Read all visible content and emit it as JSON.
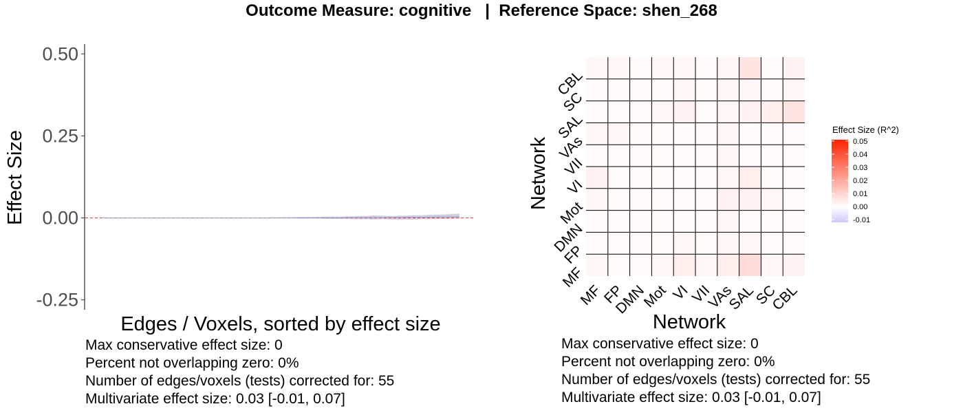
{
  "title": "Outcome Measure: cognitive   |  Reference Space: shen_268",
  "chart_data": [
    {
      "type": "line",
      "xlabel": "Edges / Voxels, sorted by effect size",
      "ylabel": "Effect Size",
      "ylim": [
        -0.28,
        0.53
      ],
      "yticks": [
        "0.50",
        "0.25",
        "0.00",
        "-0.25"
      ],
      "ytick_values": [
        0.5,
        0.25,
        0.0,
        -0.25
      ],
      "reference_line": 0,
      "n_points": 55,
      "estimate": [
        0,
        0,
        0,
        0,
        0,
        0,
        0,
        0,
        0,
        0,
        0,
        0,
        0,
        0,
        0,
        0,
        0,
        0,
        0,
        0,
        0,
        0,
        0,
        0,
        0,
        0,
        0,
        0,
        0,
        0,
        0,
        0,
        0.0005,
        0.0005,
        0.0005,
        0.0005,
        0.0005,
        0.001,
        0.001,
        0.001,
        0.001,
        0.001,
        0.001,
        0.0015,
        0.0015,
        0.0015,
        0.002,
        0.002,
        0.002,
        0.002,
        0.0025,
        0.003,
        0.003,
        0.003,
        0.004
      ],
      "ci_lower": [
        0,
        0,
        0,
        0,
        0,
        0,
        0,
        0,
        0,
        0,
        0,
        0,
        0,
        0,
        0,
        0,
        0,
        0,
        0,
        0,
        0,
        0,
        0,
        0,
        0,
        0,
        -0.001,
        -0.001,
        -0.001,
        -0.001,
        -0.002,
        -0.002,
        -0.002,
        -0.002,
        -0.003,
        -0.003,
        -0.003,
        -0.003,
        -0.004,
        -0.004,
        -0.004,
        -0.005,
        -0.004,
        -0.004,
        -0.005,
        -0.006,
        -0.005,
        -0.005,
        -0.004,
        -0.004,
        -0.004,
        -0.003,
        -0.003,
        -0.002,
        -0.002
      ],
      "ci_upper": [
        0,
        0,
        0,
        0,
        0,
        0,
        0,
        0,
        0,
        0,
        0,
        0,
        0,
        0,
        0,
        0,
        0,
        0,
        0,
        0,
        0,
        0,
        0,
        0,
        0,
        0,
        0.001,
        0.002,
        0.002,
        0.002,
        0.003,
        0.003,
        0.003,
        0.003,
        0.004,
        0.004,
        0.004,
        0.005,
        0.005,
        0.006,
        0.006,
        0.008,
        0.007,
        0.006,
        0.006,
        0.007,
        0.007,
        0.008,
        0.008,
        0.009,
        0.01,
        0.01,
        0.011,
        0.012,
        0.013
      ],
      "colors": {
        "line": "#9999cc",
        "ribbon": "#c8c8d8",
        "reference": "#e03030"
      },
      "stats": [
        "Max conservative effect size: 0",
        "Percent not overlapping zero: 0%",
        "Number of edges/voxels (tests) corrected for: 55",
        "Multivariate effect size: 0.03 [-0.01, 0.07]"
      ]
    },
    {
      "type": "heatmap",
      "xlabel": "Network",
      "ylabel": "Network",
      "categories": [
        "MF",
        "FP",
        "DMN",
        "Mot",
        "VI",
        "VII",
        "VAs",
        "SAL",
        "SC",
        "CBL"
      ],
      "values": [
        [
          0.002,
          0.001,
          0.001,
          0.002,
          0.004,
          0.002,
          0.004,
          0.008,
          0.002,
          0.003
        ],
        [
          0.001,
          0.001,
          0.001,
          0.001,
          0.002,
          0.001,
          0.002,
          0.002,
          0.001,
          0.001
        ],
        [
          0.001,
          0.001,
          0.001,
          0.001,
          0.001,
          0.001,
          0.002,
          0.001,
          0.001,
          0.001
        ],
        [
          0.002,
          0.001,
          0.001,
          0.001,
          0.001,
          0.001,
          0.003,
          0.003,
          0.002,
          0.001
        ],
        [
          0.003,
          0.001,
          0.001,
          0.001,
          0.001,
          0.001,
          0.002,
          0.004,
          0.001,
          0.001
        ],
        [
          0.001,
          0.001,
          0.001,
          0.001,
          0.001,
          0.001,
          0.002,
          0.001,
          0.001,
          0.001
        ],
        [
          0.002,
          0.002,
          0.001,
          0.001,
          0.001,
          0.001,
          0.002,
          0.001,
          0.001,
          0.001
        ],
        [
          0.001,
          0.001,
          0.001,
          0.002,
          0.003,
          0.001,
          0.002,
          0.003,
          0.004,
          0.006
        ],
        [
          0.001,
          0.001,
          0.001,
          0.001,
          0.002,
          0.001,
          0.002,
          0.002,
          0.001,
          0.002
        ],
        [
          0.002,
          0.002,
          0.001,
          0.002,
          0.002,
          0.001,
          0.002,
          0.006,
          0.001,
          0.003
        ]
      ],
      "legend": {
        "title": "Effect Size (R^2)",
        "ticks": [
          "0.05",
          "0.04",
          "0.03",
          "0.02",
          "0.01",
          "0.00",
          "-0.01"
        ],
        "tick_values": [
          0.05,
          0.04,
          0.03,
          0.02,
          0.01,
          0.0,
          -0.01
        ],
        "range": [
          -0.012,
          0.051
        ],
        "colors": {
          "high": "#ff2200",
          "mid": "#ffffff",
          "low": "#cfc8ff"
        }
      },
      "stats": [
        "Max conservative effect size: 0",
        "Percent not overlapping zero: 0%",
        "Number of edges/voxels (tests) corrected for: 55",
        "Multivariate effect size: 0.03 [-0.01, 0.07]"
      ]
    }
  ]
}
